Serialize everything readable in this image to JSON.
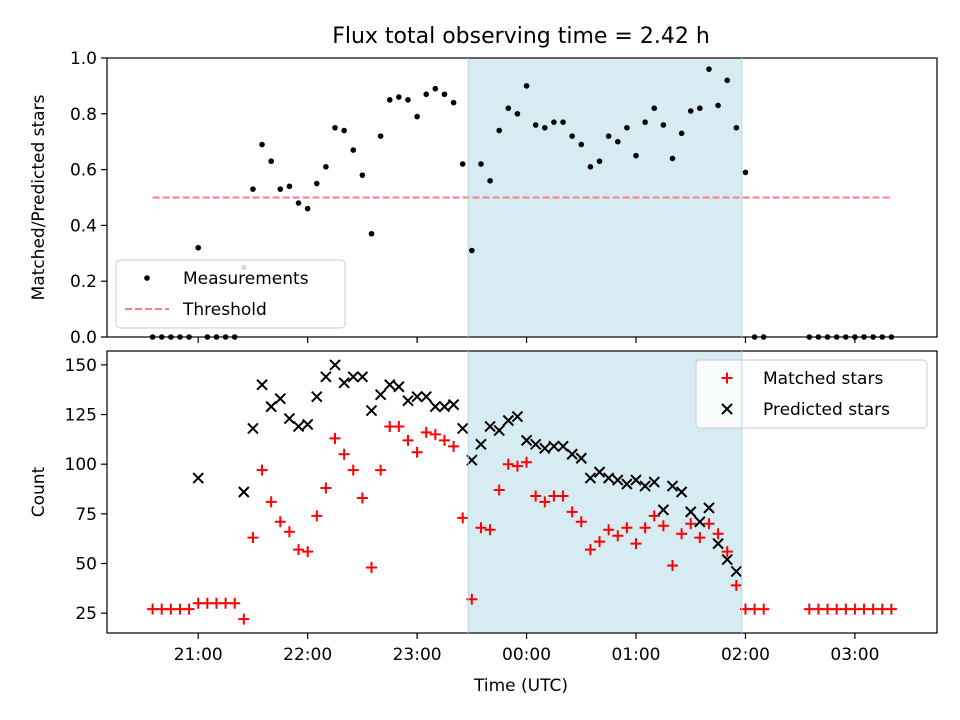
{
  "title": "Flux total observing time = 2.42 h",
  "xlabel": "Time (UTC)",
  "colors": {
    "measurement": "#000000",
    "threshold": "#ff7f7f",
    "matched": "#ff0000",
    "predicted": "#000000",
    "highlight": "#add8e6"
  },
  "chart_data": [
    {
      "type": "scatter",
      "ylabel": "Matched/Predicted stars",
      "ylim": [
        0,
        1.0
      ],
      "yticks": [
        "0.0",
        "0.2",
        "0.4",
        "0.6",
        "0.8",
        "1.0"
      ],
      "xticks": [
        "21:00",
        "22:00",
        "23:00",
        "00:00",
        "01:00",
        "02:00",
        "03:00"
      ],
      "highlight_span": [
        "23:28",
        "01:58"
      ],
      "legend": {
        "position": "lower-left",
        "entries": [
          "Measurements",
          "Threshold"
        ]
      },
      "threshold": {
        "name": "Threshold",
        "value": 0.5,
        "x_range": [
          "20:35",
          "03:20"
        ]
      },
      "series": [
        {
          "name": "Measurements",
          "marker": "dot",
          "points": [
            [
              "20:35",
              0.0
            ],
            [
              "20:40",
              0.0
            ],
            [
              "20:45",
              0.0
            ],
            [
              "20:50",
              0.0
            ],
            [
              "20:55",
              0.0
            ],
            [
              "21:00",
              0.32
            ],
            [
              "21:05",
              0.0
            ],
            [
              "21:10",
              0.0
            ],
            [
              "21:15",
              0.0
            ],
            [
              "21:20",
              0.0
            ],
            [
              "21:25",
              0.25
            ],
            [
              "21:30",
              0.53
            ],
            [
              "21:35",
              0.69
            ],
            [
              "21:40",
              0.63
            ],
            [
              "21:45",
              0.53
            ],
            [
              "21:50",
              0.54
            ],
            [
              "21:55",
              0.48
            ],
            [
              "22:00",
              0.46
            ],
            [
              "22:05",
              0.55
            ],
            [
              "22:10",
              0.61
            ],
            [
              "22:15",
              0.75
            ],
            [
              "22:20",
              0.74
            ],
            [
              "22:25",
              0.67
            ],
            [
              "22:30",
              0.58
            ],
            [
              "22:35",
              0.37
            ],
            [
              "22:40",
              0.72
            ],
            [
              "22:45",
              0.85
            ],
            [
              "22:50",
              0.86
            ],
            [
              "22:55",
              0.85
            ],
            [
              "23:00",
              0.79
            ],
            [
              "23:05",
              0.87
            ],
            [
              "23:10",
              0.89
            ],
            [
              "23:15",
              0.87
            ],
            [
              "23:20",
              0.84
            ],
            [
              "23:25",
              0.62
            ],
            [
              "23:30",
              0.31
            ],
            [
              "23:35",
              0.62
            ],
            [
              "23:40",
              0.56
            ],
            [
              "23:45",
              0.74
            ],
            [
              "23:50",
              0.82
            ],
            [
              "23:55",
              0.8
            ],
            [
              "00:00",
              0.9
            ],
            [
              "00:05",
              0.76
            ],
            [
              "00:10",
              0.75
            ],
            [
              "00:15",
              0.77
            ],
            [
              "00:20",
              0.77
            ],
            [
              "00:25",
              0.72
            ],
            [
              "00:30",
              0.69
            ],
            [
              "00:35",
              0.61
            ],
            [
              "00:40",
              0.63
            ],
            [
              "00:45",
              0.72
            ],
            [
              "00:50",
              0.7
            ],
            [
              "00:55",
              0.75
            ],
            [
              "01:00",
              0.65
            ],
            [
              "01:05",
              0.77
            ],
            [
              "01:10",
              0.82
            ],
            [
              "01:15",
              0.76
            ],
            [
              "01:20",
              0.64
            ],
            [
              "01:25",
              0.73
            ],
            [
              "01:30",
              0.81
            ],
            [
              "01:35",
              0.82
            ],
            [
              "01:40",
              0.96
            ],
            [
              "01:45",
              0.83
            ],
            [
              "01:50",
              0.92
            ],
            [
              "01:55",
              0.75
            ],
            [
              "02:00",
              0.59
            ],
            [
              "02:05",
              0.0
            ],
            [
              "02:10",
              0.0
            ],
            [
              "02:35",
              0.0
            ],
            [
              "02:40",
              0.0
            ],
            [
              "02:45",
              0.0
            ],
            [
              "02:50",
              0.0
            ],
            [
              "02:55",
              0.0
            ],
            [
              "03:00",
              0.0
            ],
            [
              "03:05",
              0.0
            ],
            [
              "03:10",
              0.0
            ],
            [
              "03:15",
              0.0
            ],
            [
              "03:20",
              0.0
            ]
          ]
        }
      ]
    },
    {
      "type": "scatter",
      "ylabel": "Count",
      "ylim": [
        15,
        157
      ],
      "yticks": [
        "25",
        "50",
        "75",
        "100",
        "125",
        "150"
      ],
      "xticks": [
        "21:00",
        "22:00",
        "23:00",
        "00:00",
        "01:00",
        "02:00",
        "03:00"
      ],
      "highlight_span": [
        "23:28",
        "01:58"
      ],
      "legend": {
        "position": "upper-right",
        "entries": [
          "Matched stars",
          "Predicted stars"
        ]
      },
      "series": [
        {
          "name": "Matched stars",
          "marker": "plus",
          "points": [
            [
              "20:35",
              27
            ],
            [
              "20:40",
              27
            ],
            [
              "20:45",
              27
            ],
            [
              "20:50",
              27
            ],
            [
              "20:55",
              27
            ],
            [
              "21:00",
              30
            ],
            [
              "21:05",
              30
            ],
            [
              "21:10",
              30
            ],
            [
              "21:15",
              30
            ],
            [
              "21:20",
              30
            ],
            [
              "21:25",
              22
            ],
            [
              "21:30",
              63
            ],
            [
              "21:35",
              97
            ],
            [
              "21:40",
              81
            ],
            [
              "21:45",
              71
            ],
            [
              "21:50",
              66
            ],
            [
              "21:55",
              57
            ],
            [
              "22:00",
              56
            ],
            [
              "22:05",
              74
            ],
            [
              "22:10",
              88
            ],
            [
              "22:15",
              113
            ],
            [
              "22:20",
              105
            ],
            [
              "22:25",
              97
            ],
            [
              "22:30",
              83
            ],
            [
              "22:35",
              48
            ],
            [
              "22:40",
              97
            ],
            [
              "22:45",
              119
            ],
            [
              "22:50",
              119
            ],
            [
              "22:55",
              112
            ],
            [
              "23:00",
              106
            ],
            [
              "23:05",
              116
            ],
            [
              "23:10",
              115
            ],
            [
              "23:15",
              112
            ],
            [
              "23:20",
              109
            ],
            [
              "23:25",
              73
            ],
            [
              "23:30",
              32
            ],
            [
              "23:35",
              68
            ],
            [
              "23:40",
              67
            ],
            [
              "23:45",
              87
            ],
            [
              "23:50",
              100
            ],
            [
              "23:55",
              99
            ],
            [
              "00:00",
              101
            ],
            [
              "00:05",
              84
            ],
            [
              "00:10",
              81
            ],
            [
              "00:15",
              84
            ],
            [
              "00:20",
              84
            ],
            [
              "00:25",
              76
            ],
            [
              "00:30",
              71
            ],
            [
              "00:35",
              57
            ],
            [
              "00:40",
              61
            ],
            [
              "00:45",
              67
            ],
            [
              "00:50",
              64
            ],
            [
              "00:55",
              68
            ],
            [
              "01:00",
              60
            ],
            [
              "01:05",
              68
            ],
            [
              "01:10",
              74
            ],
            [
              "01:15",
              69
            ],
            [
              "01:20",
              49
            ],
            [
              "01:25",
              65
            ],
            [
              "01:30",
              70
            ],
            [
              "01:35",
              63
            ],
            [
              "01:40",
              70
            ],
            [
              "01:45",
              65
            ],
            [
              "01:50",
              56
            ],
            [
              "01:55",
              39
            ],
            [
              "02:00",
              27
            ],
            [
              "02:05",
              27
            ],
            [
              "02:10",
              27
            ],
            [
              "02:35",
              27
            ],
            [
              "02:40",
              27
            ],
            [
              "02:45",
              27
            ],
            [
              "02:50",
              27
            ],
            [
              "02:55",
              27
            ],
            [
              "03:00",
              27
            ],
            [
              "03:05",
              27
            ],
            [
              "03:10",
              27
            ],
            [
              "03:15",
              27
            ],
            [
              "03:20",
              27
            ]
          ]
        },
        {
          "name": "Predicted stars",
          "marker": "x",
          "points": [
            [
              "21:00",
              93
            ],
            [
              "21:25",
              86
            ],
            [
              "21:30",
              118
            ],
            [
              "21:35",
              140
            ],
            [
              "21:40",
              129
            ],
            [
              "21:45",
              133
            ],
            [
              "21:50",
              123
            ],
            [
              "21:55",
              119
            ],
            [
              "22:00",
              120
            ],
            [
              "22:05",
              134
            ],
            [
              "22:10",
              144
            ],
            [
              "22:15",
              150
            ],
            [
              "22:20",
              141
            ],
            [
              "22:25",
              144
            ],
            [
              "22:30",
              144
            ],
            [
              "22:35",
              127
            ],
            [
              "22:40",
              135
            ],
            [
              "22:45",
              140
            ],
            [
              "22:50",
              139
            ],
            [
              "22:55",
              132
            ],
            [
              "23:00",
              134
            ],
            [
              "23:05",
              134
            ],
            [
              "23:10",
              129
            ],
            [
              "23:15",
              129
            ],
            [
              "23:20",
              130
            ],
            [
              "23:25",
              118
            ],
            [
              "23:30",
              102
            ],
            [
              "23:35",
              110
            ],
            [
              "23:40",
              119
            ],
            [
              "23:45",
              117
            ],
            [
              "23:50",
              122
            ],
            [
              "23:55",
              124
            ],
            [
              "00:00",
              112
            ],
            [
              "00:05",
              110
            ],
            [
              "00:10",
              108
            ],
            [
              "00:15",
              109
            ],
            [
              "00:20",
              109
            ],
            [
              "00:25",
              105
            ],
            [
              "00:30",
              103
            ],
            [
              "00:35",
              93
            ],
            [
              "00:40",
              96
            ],
            [
              "00:45",
              93
            ],
            [
              "00:50",
              92
            ],
            [
              "00:55",
              90
            ],
            [
              "01:00",
              92
            ],
            [
              "01:05",
              89
            ],
            [
              "01:10",
              91
            ],
            [
              "01:15",
              77
            ],
            [
              "01:20",
              89
            ],
            [
              "01:25",
              86
            ],
            [
              "01:30",
              76
            ],
            [
              "01:35",
              71
            ],
            [
              "01:40",
              78
            ],
            [
              "01:45",
              60
            ],
            [
              "01:50",
              52
            ],
            [
              "01:55",
              46
            ]
          ]
        }
      ]
    }
  ]
}
